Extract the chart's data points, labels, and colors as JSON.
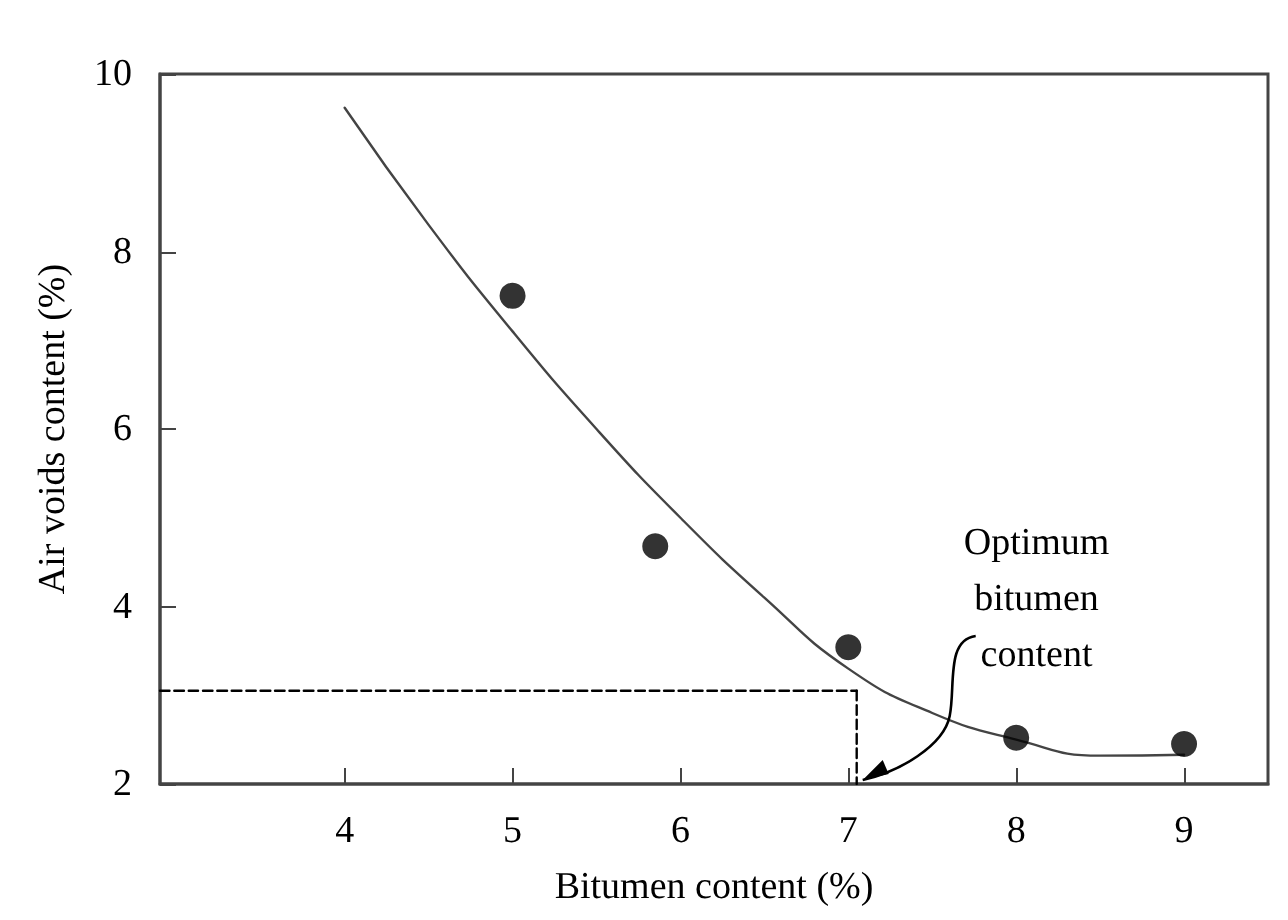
{
  "chart_data": {
    "type": "scatter",
    "xlabel": "Bitumen content (%)",
    "ylabel": "Air voids content (%)",
    "xlim": [
      2.9,
      9.5
    ],
    "ylim": [
      2,
      10
    ],
    "xticks": [
      4,
      5,
      6,
      7,
      8,
      9
    ],
    "yticks": [
      2,
      4,
      6,
      8,
      10
    ],
    "marker": "circle",
    "annotations": [
      {
        "text": "Optimum\nbitumen\ncontent",
        "x": 7.05,
        "y": 2
      }
    ],
    "series": [
      {
        "color": "#000000",
        "x": [
          5,
          5.85,
          7,
          8,
          9
        ],
        "values": [
          7.5,
          4.68,
          3.54,
          2.52,
          2.45
        ]
      },
      {
        "type": "line",
        "color": "#444444",
        "marker": "none",
        "x": [
          4,
          4.5,
          5,
          5.5,
          6,
          6.5,
          7,
          7.5,
          8,
          8.5,
          9
        ],
        "values": [
          9.62,
          8.3,
          7.1,
          6.0,
          5.0,
          4.1,
          3.3,
          2.8,
          2.5,
          2.32,
          2.33
        ]
      },
      {
        "type": "line",
        "line_style": "dashed",
        "color": "#000000",
        "marker": "none",
        "x": [
          2.9,
          7.05
        ],
        "values": [
          3.05,
          3.05
        ]
      },
      {
        "type": "line",
        "line_style": "dashed",
        "color": "#000000",
        "marker": "none",
        "x": [
          7.05,
          7.05
        ],
        "values": [
          3.05,
          2
        ]
      }
    ]
  }
}
